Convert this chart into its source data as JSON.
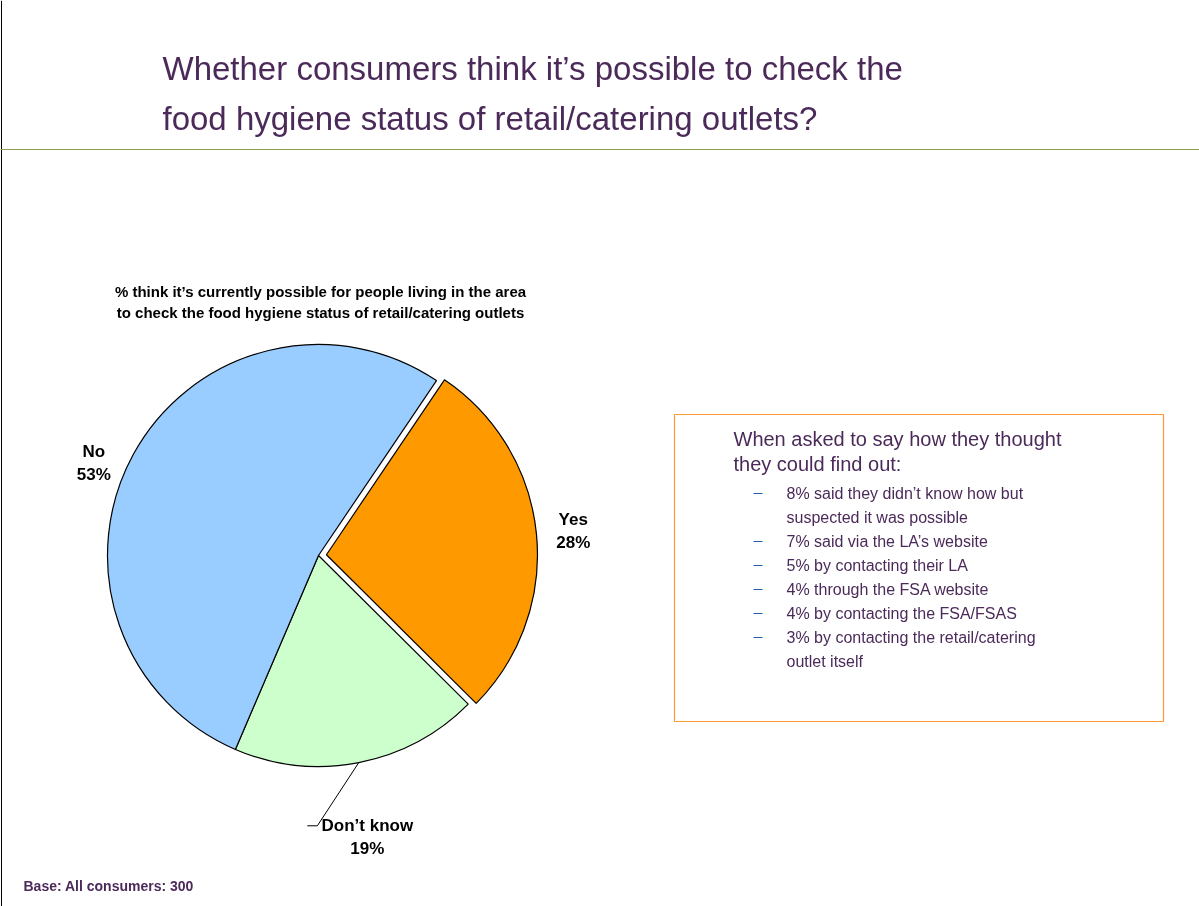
{
  "chart_data": {
    "type": "pie",
    "title": "Whether consumers think it’s possible to check the food hygiene status of retail/catering outlets?",
    "subtitle": "% think it’s currently possible for people living in the area to check the food hygiene status of retail/catering outlets",
    "categories": [
      "Yes",
      "Don’t know",
      "No"
    ],
    "values": [
      28,
      19,
      53
    ],
    "colors": [
      "#ff9900",
      "#ccffcc",
      "#99ccff"
    ],
    "value_labels": [
      "28%",
      "19%",
      "53%"
    ],
    "annotations": [
      "When asked to say how they thought they could find out:",
      "8% said they didn’t know how but suspected it was possible",
      "7% said via the LA’s website",
      "5% by contacting their LA",
      "4% through the FSA website",
      "4% by contacting the FSA/FSAS",
      "3% by contacting the retail/catering outlet itself",
      "Base:  All consumers: 300"
    ]
  }
}
